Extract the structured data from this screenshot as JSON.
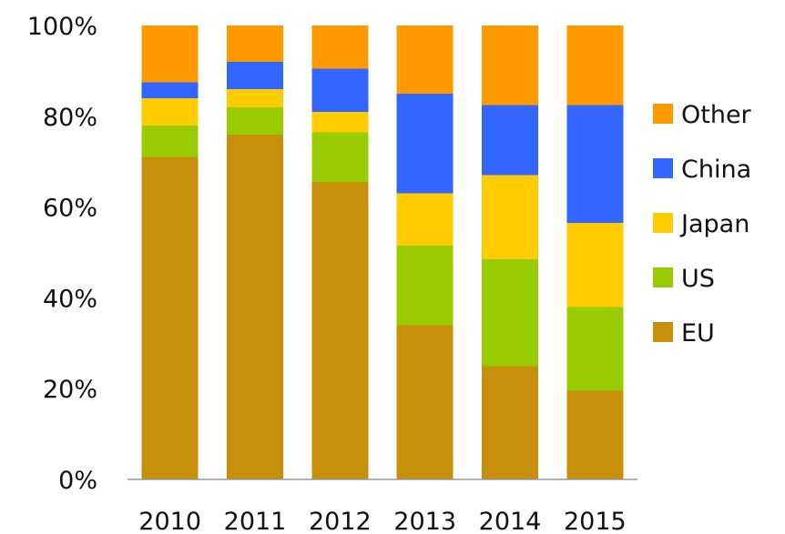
{
  "chart_data": {
    "type": "bar",
    "stacked": true,
    "normalized": true,
    "categories": [
      "2010",
      "2011",
      "2012",
      "2013",
      "2014",
      "2015"
    ],
    "series": [
      {
        "name": "EU",
        "color": "#C8900A",
        "values": [
          71,
          76,
          65.5,
          34,
          25,
          19.5
        ]
      },
      {
        "name": "US",
        "color": "#99CC00",
        "values": [
          7,
          6,
          11,
          17.5,
          23.5,
          18.5
        ]
      },
      {
        "name": "Japan",
        "color": "#FFCC00",
        "values": [
          6,
          4,
          4.5,
          11.5,
          18.5,
          18.5
        ]
      },
      {
        "name": "China",
        "color": "#3366FF",
        "values": [
          3.5,
          6,
          9.5,
          22,
          15.5,
          26
        ]
      },
      {
        "name": "Other",
        "color": "#FF9900",
        "values": [
          12.5,
          8,
          9.5,
          15,
          17.5,
          17.5
        ]
      }
    ],
    "y_ticks": [
      "0%",
      "20%",
      "40%",
      "60%",
      "80%",
      "100%"
    ],
    "ylim": [
      0,
      100
    ],
    "grid": false,
    "legend": {
      "position": "right",
      "order": [
        "Other",
        "China",
        "Japan",
        "US",
        "EU"
      ]
    },
    "title": "",
    "xlabel": "",
    "ylabel": ""
  }
}
